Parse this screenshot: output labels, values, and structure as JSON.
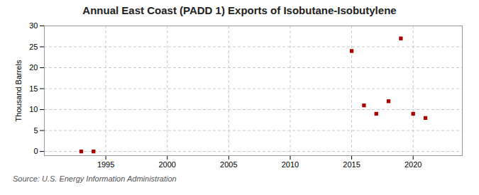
{
  "chart_data": {
    "type": "scatter",
    "title": "Annual East Coast (PADD 1) Exports of Isobutane-Isobutylene",
    "ylabel": "Thousand Barrels",
    "source": "Source: U.S. Energy Information Administration",
    "x": [
      1993,
      1994,
      2015,
      2016,
      2017,
      2018,
      2019,
      2020,
      2021
    ],
    "values": [
      0,
      0,
      24,
      11,
      9,
      12,
      27,
      9,
      8
    ],
    "color": "#aa0000",
    "marker": "square",
    "xlim": [
      1990,
      2024
    ],
    "ylim": [
      -1,
      30
    ],
    "xticks": [
      1995,
      2000,
      2005,
      2010,
      2015,
      2020
    ],
    "yticks": [
      0,
      5,
      10,
      15,
      20,
      25,
      30
    ],
    "grid": true
  }
}
